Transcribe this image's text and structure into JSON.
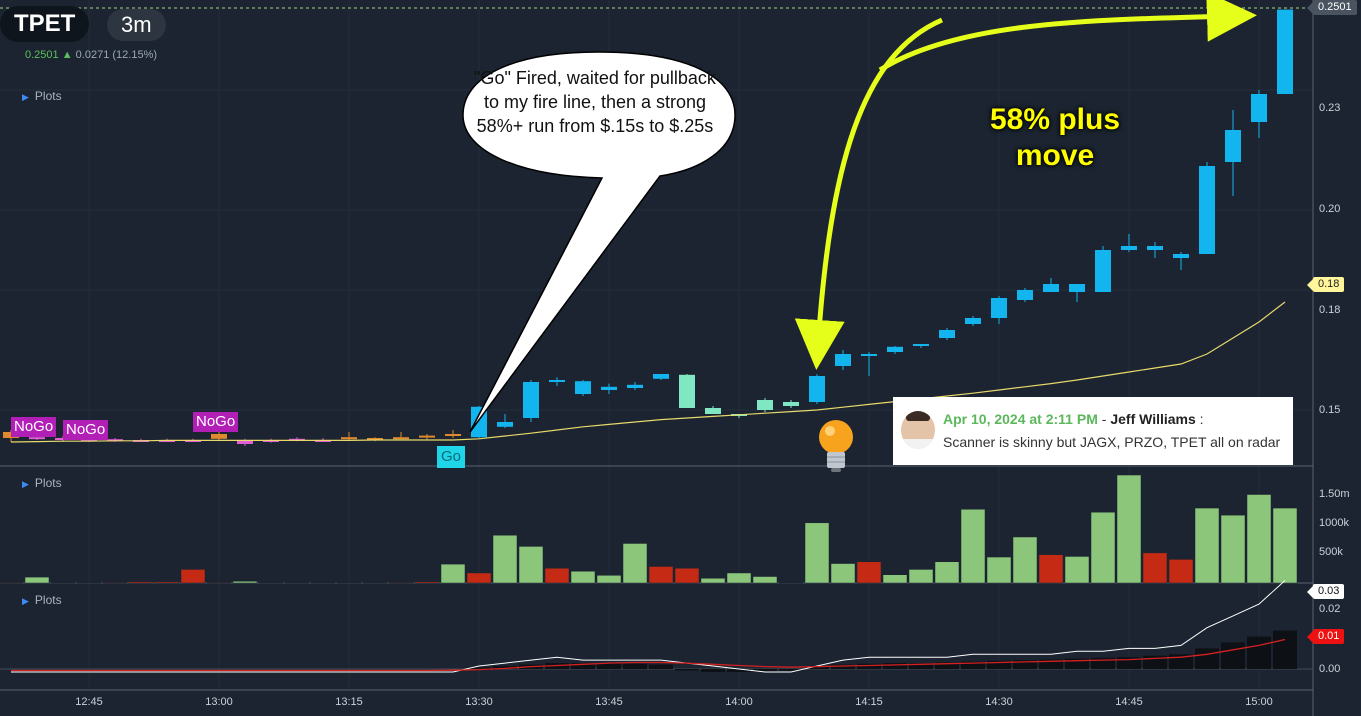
{
  "header": {
    "ticker": "TPET",
    "timeframe": "3m",
    "last_price": "0.2501",
    "change": "0.0271 (12.15%)"
  },
  "panels": {
    "price_label": "Plots",
    "volume_label": "Plots",
    "indicator_label": "Plots"
  },
  "price_axis": {
    "ticks": [
      "0.23",
      "0.20",
      "0.18",
      "0.15"
    ],
    "last_badge": "0.2501",
    "ma_badge": "0.18"
  },
  "volume_axis": {
    "ticks": [
      "1.50m",
      "1000k",
      "500k"
    ]
  },
  "indicator_axis": {
    "ticks": [
      "0.02",
      "0.00"
    ],
    "line_badge": "0.03",
    "signal_badge": "0.01"
  },
  "time_axis": [
    "12:45",
    "13:00",
    "13:15",
    "13:30",
    "13:45",
    "14:00",
    "14:15",
    "14:30",
    "14:45",
    "15:00"
  ],
  "signals": {
    "nogo_1": "NoGo",
    "nogo_2": "NoGo",
    "nogo_3": "NoGo",
    "go": "Go"
  },
  "annotations": {
    "bubble": "\"Go\" Fired, waited for pullback to my fire line, then a strong 58%+ run from $.15s to $.25s",
    "move": "58% plus move"
  },
  "note": {
    "date": "Apr 10, 2024 at 2:11 PM",
    "author": "Jeff Williams",
    "message": "Scanner is skinny but JAGX, PRZO, TPET all on radar"
  },
  "colors": {
    "up": "#13b5ee",
    "up_alt": "#7fe8c3",
    "down_pre": "#e08a2e",
    "magenta": "#e060d8",
    "vol_up": "#8cc67a",
    "vol_down": "#c52b14",
    "ma": "#e8d96a",
    "arrow": "#e6ff1a"
  },
  "chart_data": {
    "type": "candlestick",
    "candles": [
      {
        "o": 0.1445,
        "h": 0.145,
        "l": 0.142,
        "c": 0.143,
        "s": "d"
      },
      {
        "o": 0.1432,
        "h": 0.1438,
        "l": 0.1425,
        "c": 0.1428,
        "s": "m"
      },
      {
        "o": 0.143,
        "h": 0.1435,
        "l": 0.142,
        "c": 0.1425,
        "s": "m"
      },
      {
        "o": 0.1428,
        "h": 0.1432,
        "l": 0.142,
        "c": 0.1424,
        "s": "m"
      },
      {
        "o": 0.1427,
        "h": 0.143,
        "l": 0.142,
        "c": 0.1423,
        "s": "m"
      },
      {
        "o": 0.1425,
        "h": 0.1428,
        "l": 0.142,
        "c": 0.1423,
        "s": "m"
      },
      {
        "o": 0.1425,
        "h": 0.1428,
        "l": 0.142,
        "c": 0.1424,
        "s": "m"
      },
      {
        "o": 0.1425,
        "h": 0.1428,
        "l": 0.142,
        "c": 0.1424,
        "s": "m"
      },
      {
        "o": 0.144,
        "h": 0.1445,
        "l": 0.1425,
        "c": 0.1428,
        "s": "d"
      },
      {
        "o": 0.1425,
        "h": 0.1428,
        "l": 0.141,
        "c": 0.1415,
        "s": "m"
      },
      {
        "o": 0.1425,
        "h": 0.1428,
        "l": 0.1418,
        "c": 0.142,
        "s": "m"
      },
      {
        "o": 0.1428,
        "h": 0.1432,
        "l": 0.1422,
        "c": 0.1425,
        "s": "m"
      },
      {
        "o": 0.1425,
        "h": 0.143,
        "l": 0.142,
        "c": 0.1425,
        "s": "m"
      },
      {
        "o": 0.143,
        "h": 0.1445,
        "l": 0.1425,
        "c": 0.1432,
        "s": "d"
      },
      {
        "o": 0.143,
        "h": 0.1432,
        "l": 0.1422,
        "c": 0.1425,
        "s": "d"
      },
      {
        "o": 0.1432,
        "h": 0.1445,
        "l": 0.1428,
        "c": 0.143,
        "s": "d"
      },
      {
        "o": 0.1432,
        "h": 0.144,
        "l": 0.1426,
        "c": 0.1436,
        "s": "d"
      },
      {
        "o": 0.144,
        "h": 0.145,
        "l": 0.143,
        "c": 0.1435,
        "s": "d"
      },
      {
        "o": 0.1432,
        "h": 0.151,
        "l": 0.143,
        "c": 0.1508,
        "s": "u"
      },
      {
        "o": 0.1458,
        "h": 0.149,
        "l": 0.1455,
        "c": 0.147,
        "s": "u"
      },
      {
        "o": 0.148,
        "h": 0.1575,
        "l": 0.147,
        "c": 0.157,
        "s": "u"
      },
      {
        "o": 0.1573,
        "h": 0.1582,
        "l": 0.156,
        "c": 0.1575,
        "s": "u"
      },
      {
        "o": 0.154,
        "h": 0.1575,
        "l": 0.1535,
        "c": 0.1572,
        "s": "u"
      },
      {
        "o": 0.155,
        "h": 0.1566,
        "l": 0.154,
        "c": 0.1558,
        "s": "u"
      },
      {
        "o": 0.1555,
        "h": 0.157,
        "l": 0.155,
        "c": 0.1563,
        "s": "u"
      },
      {
        "o": 0.1578,
        "h": 0.159,
        "l": 0.1575,
        "c": 0.159,
        "s": "u"
      },
      {
        "o": 0.1588,
        "h": 0.159,
        "l": 0.1505,
        "c": 0.1505,
        "s": "t"
      },
      {
        "o": 0.1505,
        "h": 0.151,
        "l": 0.149,
        "c": 0.149,
        "s": "t"
      },
      {
        "o": 0.1485,
        "h": 0.149,
        "l": 0.148,
        "c": 0.149,
        "s": "t"
      },
      {
        "o": 0.15,
        "h": 0.153,
        "l": 0.1495,
        "c": 0.1525,
        "s": "t"
      },
      {
        "o": 0.151,
        "h": 0.1525,
        "l": 0.1505,
        "c": 0.152,
        "s": "t"
      },
      {
        "o": 0.152,
        "h": 0.159,
        "l": 0.1515,
        "c": 0.1585,
        "s": "u"
      },
      {
        "o": 0.161,
        "h": 0.165,
        "l": 0.16,
        "c": 0.164,
        "s": "u"
      },
      {
        "o": 0.164,
        "h": 0.1645,
        "l": 0.1585,
        "c": 0.164,
        "s": "u"
      },
      {
        "o": 0.1645,
        "h": 0.166,
        "l": 0.164,
        "c": 0.1658,
        "s": "u"
      },
      {
        "o": 0.166,
        "h": 0.1665,
        "l": 0.1655,
        "c": 0.1665,
        "s": "u"
      },
      {
        "o": 0.168,
        "h": 0.1705,
        "l": 0.1675,
        "c": 0.17,
        "s": "u"
      },
      {
        "o": 0.1715,
        "h": 0.1735,
        "l": 0.171,
        "c": 0.173,
        "s": "u"
      },
      {
        "o": 0.173,
        "h": 0.1785,
        "l": 0.1715,
        "c": 0.178,
        "s": "u"
      },
      {
        "o": 0.1775,
        "h": 0.1805,
        "l": 0.177,
        "c": 0.18,
        "s": "u"
      },
      {
        "o": 0.1795,
        "h": 0.183,
        "l": 0.1795,
        "c": 0.1815,
        "s": "u"
      },
      {
        "o": 0.1795,
        "h": 0.1815,
        "l": 0.177,
        "c": 0.1815,
        "s": "u"
      },
      {
        "o": 0.1795,
        "h": 0.191,
        "l": 0.1795,
        "c": 0.19,
        "s": "u"
      },
      {
        "o": 0.19,
        "h": 0.194,
        "l": 0.1895,
        "c": 0.191,
        "s": "u"
      },
      {
        "o": 0.19,
        "h": 0.192,
        "l": 0.188,
        "c": 0.191,
        "s": "u"
      },
      {
        "o": 0.188,
        "h": 0.1895,
        "l": 0.185,
        "c": 0.189,
        "s": "u"
      },
      {
        "o": 0.189,
        "h": 0.212,
        "l": 0.189,
        "c": 0.211,
        "s": "u"
      },
      {
        "o": 0.212,
        "h": 0.225,
        "l": 0.2035,
        "c": 0.22,
        "s": "u"
      },
      {
        "o": 0.222,
        "h": 0.23,
        "l": 0.218,
        "c": 0.229,
        "s": "u"
      },
      {
        "o": 0.229,
        "h": 0.2501,
        "l": 0.229,
        "c": 0.2501,
        "s": "u"
      }
    ],
    "moving_average": [
      0.142,
      0.1421,
      0.1422,
      0.1422,
      0.1423,
      0.1423,
      0.1424,
      0.1424,
      0.1424,
      0.1424,
      0.1424,
      0.1424,
      0.1424,
      0.1424,
      0.1425,
      0.1425,
      0.1425,
      0.1425,
      0.1428,
      0.1435,
      0.1442,
      0.145,
      0.1458,
      0.1464,
      0.147,
      0.1476,
      0.148,
      0.1484,
      0.1488,
      0.1492,
      0.1496,
      0.15,
      0.1507,
      0.1514,
      0.1521,
      0.1528,
      0.1535,
      0.1542,
      0.155,
      0.1558,
      0.1566,
      0.1575,
      0.1585,
      0.1595,
      0.1605,
      0.1615,
      0.164,
      0.168,
      0.172,
      0.177
    ],
    "volume": [
      {
        "v": 10,
        "s": "d"
      },
      {
        "v": 100,
        "s": "u"
      },
      {
        "v": 5,
        "s": "d"
      },
      {
        "v": 5,
        "s": "d"
      },
      {
        "v": 10,
        "s": "d"
      },
      {
        "v": 20,
        "s": "d"
      },
      {
        "v": 20,
        "s": "d"
      },
      {
        "v": 230,
        "s": "d"
      },
      {
        "v": 10,
        "s": "d"
      },
      {
        "v": 30,
        "s": "u"
      },
      {
        "v": 5,
        "s": "d"
      },
      {
        "v": 5,
        "s": "d"
      },
      {
        "v": 5,
        "s": "d"
      },
      {
        "v": 5,
        "s": "d"
      },
      {
        "v": 5,
        "s": "d"
      },
      {
        "v": 10,
        "s": "d"
      },
      {
        "v": 20,
        "s": "d"
      },
      {
        "v": 320,
        "s": "u"
      },
      {
        "v": 170,
        "s": "d"
      },
      {
        "v": 810,
        "s": "u"
      },
      {
        "v": 620,
        "s": "u"
      },
      {
        "v": 250,
        "s": "d"
      },
      {
        "v": 200,
        "s": "u"
      },
      {
        "v": 130,
        "s": "u"
      },
      {
        "v": 670,
        "s": "u"
      },
      {
        "v": 280,
        "s": "d"
      },
      {
        "v": 250,
        "s": "d"
      },
      {
        "v": 80,
        "s": "u"
      },
      {
        "v": 170,
        "s": "u"
      },
      {
        "v": 110,
        "s": "u"
      },
      {
        "v": 5,
        "s": "d"
      },
      {
        "v": 1020,
        "s": "u"
      },
      {
        "v": 330,
        "s": "u"
      },
      {
        "v": 360,
        "s": "d"
      },
      {
        "v": 140,
        "s": "u"
      },
      {
        "v": 230,
        "s": "u"
      },
      {
        "v": 360,
        "s": "u"
      },
      {
        "v": 1250,
        "s": "u"
      },
      {
        "v": 440,
        "s": "u"
      },
      {
        "v": 780,
        "s": "u"
      },
      {
        "v": 480,
        "s": "d"
      },
      {
        "v": 450,
        "s": "u"
      },
      {
        "v": 1200,
        "s": "u"
      },
      {
        "v": 1830,
        "s": "u"
      },
      {
        "v": 510,
        "s": "d"
      },
      {
        "v": 400,
        "s": "d"
      },
      {
        "v": 1270,
        "s": "u"
      },
      {
        "v": 1150,
        "s": "u"
      },
      {
        "v": 1500,
        "s": "u"
      },
      {
        "v": 1270,
        "s": "u"
      }
    ],
    "indicator_line": [
      -0.001,
      -0.001,
      -0.001,
      -0.001,
      -0.001,
      -0.001,
      -0.001,
      -0.001,
      -0.001,
      -0.001,
      -0.001,
      -0.001,
      -0.001,
      -0.001,
      -0.001,
      -0.001,
      -0.001,
      -0.001,
      0.001,
      0.002,
      0.003,
      0.004,
      0.003,
      0.003,
      0.003,
      0.003,
      0.002,
      0.001,
      0.0,
      -0.001,
      -0.001,
      0.001,
      0.003,
      0.004,
      0.004,
      0.004,
      0.004,
      0.005,
      0.005,
      0.005,
      0.005,
      0.006,
      0.006,
      0.007,
      0.007,
      0.008,
      0.014,
      0.018,
      0.022,
      0.03
    ],
    "indicator_signal": [
      -0.0005,
      -0.0005,
      -0.0005,
      -0.0005,
      -0.0005,
      -0.0005,
      -0.0005,
      -0.0005,
      -0.0005,
      -0.0005,
      -0.0005,
      -0.0005,
      -0.0005,
      -0.0005,
      -0.0005,
      -0.0005,
      -0.0005,
      -0.0004,
      -0.0002,
      0.0002,
      0.0008,
      0.0012,
      0.0016,
      0.002,
      0.0022,
      0.0022,
      0.002,
      0.0016,
      0.0012,
      0.0008,
      0.0006,
      0.0008,
      0.001,
      0.0012,
      0.0014,
      0.0016,
      0.0018,
      0.002,
      0.0022,
      0.0024,
      0.0026,
      0.0028,
      0.003,
      0.0032,
      0.0036,
      0.004,
      0.005,
      0.0065,
      0.008,
      0.01
    ],
    "indicator_hist": [
      0,
      0,
      0,
      0,
      0,
      0,
      0,
      0,
      0,
      0,
      0,
      0,
      0,
      0,
      0,
      0,
      0,
      0,
      0.0005,
      0.001,
      0.0015,
      0.002,
      0.002,
      0.002,
      0.0018,
      0.0015,
      -0.0005,
      -0.001,
      -0.001,
      -0.0008,
      -0.0006,
      0.001,
      0.0015,
      0.0018,
      0.002,
      0.002,
      0.0022,
      0.0025,
      0.0028,
      0.003,
      0.0032,
      0.0035,
      0.0038,
      0.004,
      0.0045,
      0.005,
      0.007,
      0.009,
      0.011,
      0.013
    ]
  }
}
